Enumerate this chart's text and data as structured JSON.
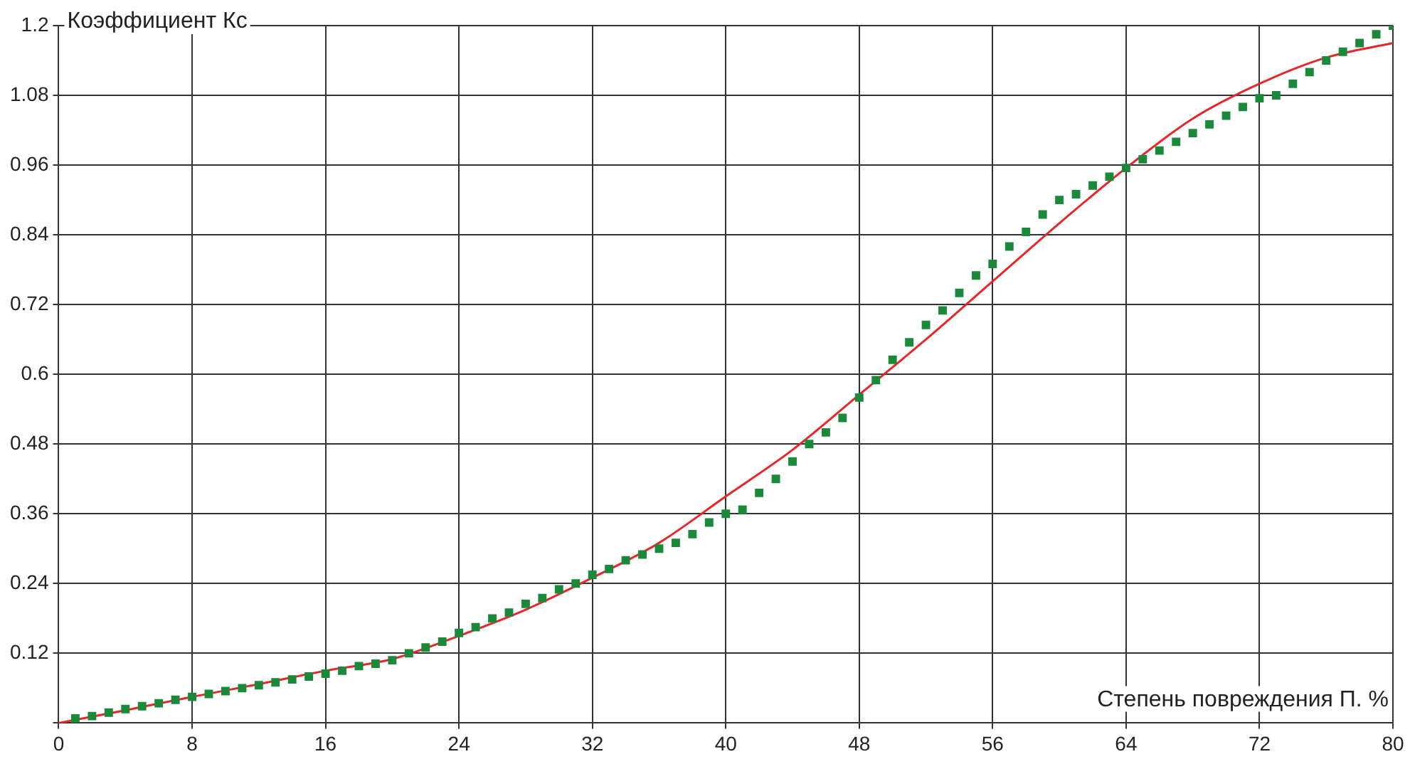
{
  "chart_data": {
    "type": "scatter",
    "xlabel": "Степень повреждения П. %",
    "ylabel": "Коэффициент Кс",
    "xlim": [
      0,
      80
    ],
    "ylim": [
      0,
      1.2
    ],
    "xticks": [
      0,
      8,
      16,
      24,
      32,
      40,
      48,
      56,
      64,
      72,
      80
    ],
    "yticks": [
      {
        "value": 0,
        "label": null
      },
      0.12,
      0.24,
      0.36,
      0.48,
      0.6,
      0.72,
      0.84,
      0.96,
      1.08,
      1.2
    ],
    "grid": true,
    "legend": false,
    "series": [
      {
        "marker": "square",
        "color": "#1a8a3a",
        "x": [
          1,
          2,
          3,
          4,
          5,
          6,
          7,
          8,
          9,
          10,
          11,
          12,
          13,
          14,
          15,
          16,
          17,
          18,
          19,
          20,
          21,
          22,
          23,
          24,
          25,
          26,
          27,
          28,
          29,
          30,
          31,
          32,
          33,
          34,
          35,
          36,
          37,
          38,
          39,
          40,
          41,
          42,
          43,
          44,
          45,
          46,
          47,
          48,
          49,
          50,
          51,
          52,
          53,
          54,
          55,
          56,
          57,
          58,
          59,
          60,
          61,
          62,
          63,
          64,
          65,
          66,
          67,
          68,
          69,
          70,
          71,
          72,
          73,
          74,
          75,
          76,
          77,
          78,
          79,
          80
        ],
        "values": [
          0.008,
          0.012,
          0.018,
          0.024,
          0.029,
          0.034,
          0.04,
          0.045,
          0.05,
          0.055,
          0.06,
          0.065,
          0.07,
          0.075,
          0.08,
          0.085,
          0.09,
          0.098,
          0.102,
          0.108,
          0.12,
          0.13,
          0.14,
          0.155,
          0.165,
          0.18,
          0.19,
          0.205,
          0.215,
          0.23,
          0.24,
          0.255,
          0.265,
          0.28,
          0.29,
          0.3,
          0.31,
          0.325,
          0.345,
          0.36,
          0.367,
          0.396,
          0.42,
          0.45,
          0.48,
          0.5,
          0.525,
          0.56,
          0.59,
          0.625,
          0.655,
          0.685,
          0.71,
          0.74,
          0.77,
          0.79,
          0.82,
          0.845,
          0.875,
          0.9,
          0.91,
          0.925,
          0.94,
          0.955,
          0.97,
          0.985,
          1.0,
          1.015,
          1.03,
          1.045,
          1.06,
          1.075,
          1.08,
          1.1,
          1.12,
          1.14,
          1.155,
          1.17,
          1.185,
          1.2
        ]
      },
      {
        "type": "line",
        "marker": "none",
        "line_style": "solid",
        "color": "#e8262a",
        "x": [
          0,
          4,
          8,
          12,
          16,
          20,
          24,
          28,
          32,
          36,
          40,
          44,
          48,
          52,
          56,
          60,
          64,
          68,
          72,
          76,
          80
        ],
        "values": [
          0,
          0.022,
          0.045,
          0.067,
          0.09,
          0.11,
          0.15,
          0.195,
          0.25,
          0.31,
          0.39,
          0.47,
          0.565,
          0.66,
          0.76,
          0.86,
          0.955,
          1.04,
          1.1,
          1.145,
          1.17
        ]
      }
    ]
  }
}
